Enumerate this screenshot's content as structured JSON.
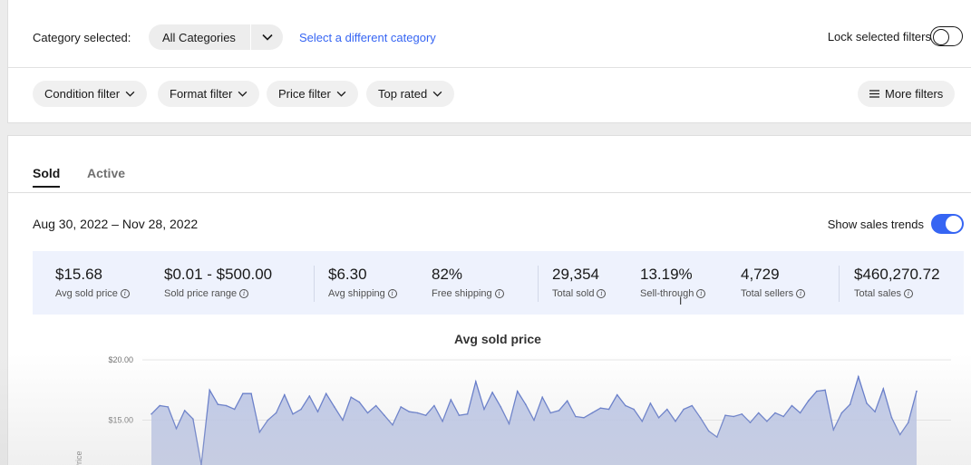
{
  "filters": {
    "category_label": "Category selected:",
    "category_value": "All Categories",
    "change_category": "Select a different category",
    "lock_label": "Lock selected filters",
    "chips": [
      "Condition filter",
      "Format filter",
      "Price filter",
      "Top rated"
    ],
    "more_filters": "More filters"
  },
  "results": {
    "tabs": [
      "Sold",
      "Active"
    ],
    "active_tab": "Sold",
    "date_range": "Aug 30, 2022 – Nov 28, 2022",
    "trends_label": "Show sales trends",
    "trends_on": true
  },
  "stats": [
    {
      "value": "$15.68",
      "label": "Avg sold price"
    },
    {
      "value": "$0.01 - $500.00",
      "label": "Sold price range"
    },
    {
      "value": "$6.30",
      "label": "Avg shipping"
    },
    {
      "value": "82%",
      "label": "Free shipping"
    },
    {
      "value": "29,354",
      "label": "Total sold"
    },
    {
      "value": "13.19%",
      "label": "Sell-through"
    },
    {
      "value": "4,729",
      "label": "Total sellers"
    },
    {
      "value": "$460,270.72",
      "label": "Total sales"
    }
  ],
  "colors": {
    "accent": "#3665f3",
    "stats_bg": "#eef2fd",
    "series_line": "#5a73c8",
    "series_fill": "#b5c1e6"
  },
  "chart_data": {
    "type": "area",
    "title": "Avg sold price",
    "ylabel": "Price",
    "y_ticks": [
      "$20.00",
      "$15.00"
    ],
    "ylim": [
      10,
      20
    ],
    "x_start": "Aug 30, 2022",
    "x_end": "Nov 28, 2022",
    "series": [
      {
        "values": [
          15.5,
          16.2,
          16.1,
          14.3,
          15.8,
          15.1,
          11.3,
          17.5,
          16.3,
          16.2,
          15.9,
          17.2,
          17.2,
          14,
          15,
          15.6,
          17.1,
          15.5,
          15.9,
          17,
          15.7,
          17.2,
          16.1,
          15,
          16.9,
          16.5,
          15.6,
          16.2,
          15.4,
          14.6,
          16.1,
          15.7,
          15.6,
          15.4,
          16.2,
          14.9,
          16.7,
          15.4,
          15.5,
          18.2,
          15.9,
          17.3,
          16.1,
          14.7,
          17.4,
          16.3,
          15,
          16.9,
          15.6,
          15.8,
          16.6,
          15.3,
          15.2,
          15.6,
          16,
          15.9,
          17.1,
          16.2,
          15.9,
          14.9,
          16.4,
          15.2,
          15.9,
          14.9,
          15.9,
          16.2,
          15.2,
          14.1,
          13.6,
          15.4,
          15.3,
          15.5,
          14.8,
          15.6,
          14.9,
          15.6,
          15.3,
          16.2,
          15.6,
          16.6,
          17.4,
          17.5,
          14.2,
          15.6,
          16.3,
          18.6,
          16.4,
          15.7,
          17.6,
          15.2,
          13.8,
          14.8,
          17.4
        ]
      }
    ]
  }
}
